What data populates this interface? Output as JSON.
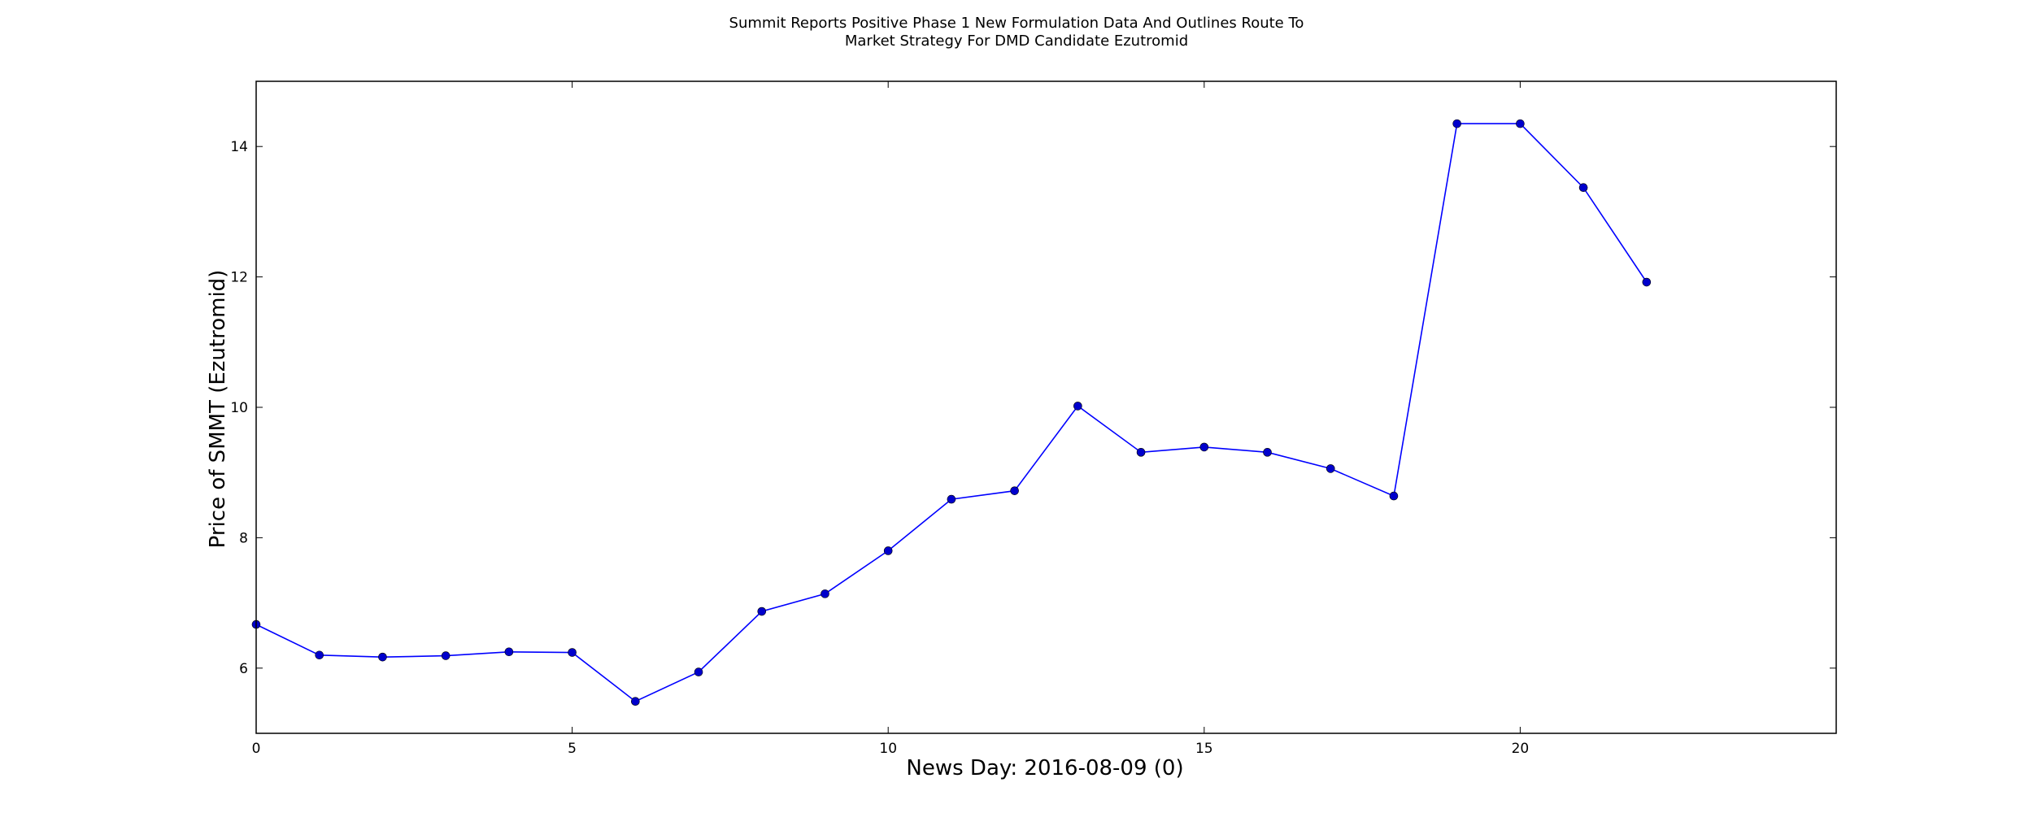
{
  "chart_data": {
    "type": "line",
    "title_lines": [
      "Summit Reports Positive Phase 1 New Formulation Data And Outlines Route To",
      "Market Strategy For DMD Candidate Ezutromid"
    ],
    "xlabel": "News Day: 2016-08-09 (0)",
    "ylabel": "Price of SMMT (Ezutromid)",
    "xlim": [
      0,
      25
    ],
    "ylim": [
      5,
      15
    ],
    "xticks": [
      0,
      5,
      10,
      15,
      20
    ],
    "yticks": [
      6,
      8,
      10,
      12,
      14
    ],
    "grid": false,
    "legend": "none",
    "line_color": "#0000ff",
    "marker_color": "#0000cc",
    "series": [
      {
        "x": [
          0,
          1,
          2,
          3,
          4,
          5,
          6,
          7,
          8,
          9,
          10,
          11,
          12,
          13,
          14,
          15,
          16,
          17,
          18,
          19,
          20,
          21,
          22
        ],
        "y": [
          6.67,
          6.2,
          6.17,
          6.19,
          6.25,
          6.24,
          5.49,
          5.94,
          6.87,
          7.14,
          7.8,
          8.59,
          8.72,
          10.02,
          9.31,
          9.39,
          9.31,
          9.06,
          8.64,
          14.35,
          14.35,
          13.37,
          11.92
        ]
      }
    ]
  }
}
